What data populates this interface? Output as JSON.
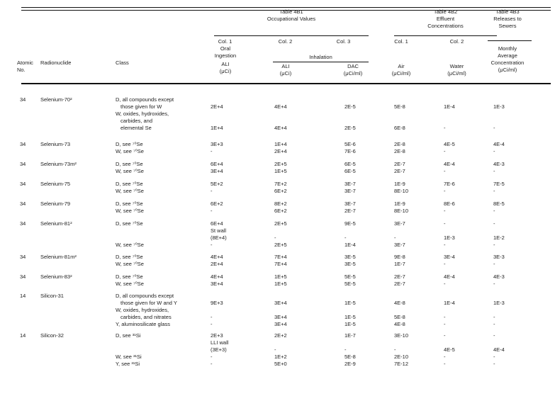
{
  "table_headers": {
    "atomic_no_line1": "Atomic",
    "atomic_no_line2": "No.",
    "radionuclide": "Radionuclide",
    "class_label": "Class",
    "t4b1": {
      "title1": "Table 4B1",
      "title2": "Occupational Values",
      "col1": "Col. 1",
      "col2": "Col. 2",
      "col3": "Col. 3",
      "oral1": "Oral",
      "oral2": "Ingestion",
      "oral3": "ALI",
      "oral4": "(μCi)",
      "inhalation": "Inhalation",
      "ali1": "ALI",
      "ali2": "(μCi)",
      "dac1": "DAC",
      "dac2": "(μCi/ml)"
    },
    "t4b2": {
      "title1": "Table 4B2",
      "title2": "Effluent",
      "title3": "Concentrations",
      "col1": "Col. 1",
      "col2": "Col. 2",
      "air1": "Air",
      "air2": "(μCi/ml)",
      "water1": "Water",
      "water2": "(μCi/ml)"
    },
    "t4b3": {
      "title1": "Table 4B3",
      "title2": "Releases to",
      "title3": "Sewers",
      "m1": "Monthly",
      "m2": "Average",
      "m3": "Concentration",
      "m4": "(μCi/ml)"
    }
  },
  "rows": [
    {
      "atomic": "34",
      "nuclide": "Selenium-70²",
      "lines": [
        {
          "class": "D, all compounds except",
          "indent": 0
        },
        {
          "class": "those given for W",
          "indent": 1,
          "oral": "2E+4",
          "inh": "4E+4",
          "dac": "2E-5",
          "air": "5E-8",
          "water": "1E-4",
          "sewer": "1E-3"
        },
        {
          "class": "W, oxides, hydroxides,",
          "indent": 0
        },
        {
          "class": "carbides, and",
          "indent": 1
        },
        {
          "class": "elemental Se",
          "indent": 1,
          "oral": "1E+4",
          "inh": "4E+4",
          "dac": "2E-5",
          "air": "6E-8",
          "water": "-",
          "sewer": "-"
        }
      ]
    },
    {
      "atomic": "34",
      "nuclide": "Selenium-73",
      "lines": [
        {
          "class": "D, see ⁷⁰Se",
          "indent": 0,
          "oral": "3E+3",
          "inh": "1E+4",
          "dac": "5E-6",
          "air": "2E-8",
          "water": "4E-5",
          "sewer": "4E-4"
        },
        {
          "class": "W, see ⁷⁰Se",
          "indent": 0,
          "oral": "-",
          "inh": "2E+4",
          "dac": "7E-6",
          "air": "2E-8",
          "water": "-",
          "sewer": "-"
        }
      ]
    },
    {
      "atomic": "34",
      "nuclide": "Selenium-73m²",
      "lines": [
        {
          "class": "D, see ⁷⁰Se",
          "indent": 0,
          "oral": "6E+4",
          "inh": "2E+5",
          "dac": "6E-5",
          "air": "2E-7",
          "water": "4E-4",
          "sewer": "4E-3"
        },
        {
          "class": "W, see ⁷⁰Se",
          "indent": 0,
          "oral": "3E+4",
          "inh": "1E+5",
          "dac": "6E-5",
          "air": "2E-7",
          "water": "-",
          "sewer": "-"
        }
      ]
    },
    {
      "atomic": "34",
      "nuclide": "Selenium-75",
      "lines": [
        {
          "class": "D, see ⁷⁰Se",
          "indent": 0,
          "oral": "5E+2",
          "inh": "7E+2",
          "dac": "3E-7",
          "air": "1E-9",
          "water": "7E-6",
          "sewer": "7E-5"
        },
        {
          "class": "W, see ⁷⁰Se",
          "indent": 0,
          "oral": "-",
          "inh": "6E+2",
          "dac": "3E-7",
          "air": "8E-10",
          "water": "-",
          "sewer": "-"
        }
      ]
    },
    {
      "atomic": "34",
      "nuclide": "Selenium-79",
      "lines": [
        {
          "class": "D, see ⁷⁰Se",
          "indent": 0,
          "oral": "6E+2",
          "inh": "8E+2",
          "dac": "3E-7",
          "air": "1E-9",
          "water": "8E-6",
          "sewer": "8E-5"
        },
        {
          "class": "W, see ⁷⁰Se",
          "indent": 0,
          "oral": "-",
          "inh": "6E+2",
          "dac": "2E-7",
          "air": "8E-10",
          "water": "-",
          "sewer": "-"
        }
      ]
    },
    {
      "atomic": "34",
      "nuclide": "Selenium-81²",
      "lines": [
        {
          "class": "D, see ⁷⁰Se",
          "indent": 0,
          "oral": "6E+4",
          "inh": "2E+5",
          "dac": "9E-5",
          "air": "3E-7",
          "water": "-",
          "sewer": "-"
        },
        {
          "class": "",
          "indent": 0,
          "oral": "St wall"
        },
        {
          "class": "",
          "indent": 0,
          "oral": "(8E+4)",
          "inh": "-",
          "dac": "-",
          "air": "-",
          "water": "1E-3",
          "sewer": "1E-2"
        },
        {
          "class": "W, see ⁷⁰Se",
          "indent": 0,
          "oral": "-",
          "inh": "2E+5",
          "dac": "1E-4",
          "air": "3E-7",
          "water": "-",
          "sewer": "-"
        }
      ]
    },
    {
      "atomic": "34",
      "nuclide": "Selenium-81m²",
      "lines": [
        {
          "class": "D, see ⁷⁰Se",
          "indent": 0,
          "oral": "4E+4",
          "inh": "7E+4",
          "dac": "3E-5",
          "air": "9E-8",
          "water": "3E-4",
          "sewer": "3E-3"
        },
        {
          "class": "W, see ⁷⁰Se",
          "indent": 0,
          "oral": "2E+4",
          "inh": "7E+4",
          "dac": "3E-5",
          "air": "1E-7",
          "water": "-",
          "sewer": "-"
        }
      ]
    },
    {
      "atomic": "34",
      "nuclide": "Selenium-83²",
      "lines": [
        {
          "class": "D, see ⁷⁰Se",
          "indent": 0,
          "oral": "4E+4",
          "inh": "1E+5",
          "dac": "5E-5",
          "air": "2E-7",
          "water": "4E-4",
          "sewer": "4E-3"
        },
        {
          "class": "W, see ⁷⁰Se",
          "indent": 0,
          "oral": "3E+4",
          "inh": "1E+5",
          "dac": "5E-5",
          "air": "2E-7",
          "water": "-",
          "sewer": "-"
        }
      ]
    },
    {
      "atomic": "14",
      "nuclide": "Silicon-31",
      "lines": [
        {
          "class": "D, all compounds except",
          "indent": 0
        },
        {
          "class": "those given for W and Y",
          "indent": 1,
          "oral": "9E+3",
          "inh": "3E+4",
          "dac": "1E-5",
          "air": "4E-8",
          "water": "1E-4",
          "sewer": "1E-3"
        },
        {
          "class": "W, oxides, hydroxides,",
          "indent": 0
        },
        {
          "class": "carbides, and nitrates",
          "indent": 1,
          "oral": "-",
          "inh": "3E+4",
          "dac": "1E-5",
          "air": "5E-8",
          "water": "-",
          "sewer": "-"
        },
        {
          "class": "Y, aluminosilicate glass",
          "indent": 0,
          "oral": "-",
          "inh": "3E+4",
          "dac": "1E-5",
          "air": "4E-8",
          "water": "-",
          "sewer": "-"
        }
      ]
    },
    {
      "atomic": "14",
      "nuclide": "Silicon-32",
      "lines": [
        {
          "class": "D, see ³¹Si",
          "indent": 0,
          "oral": "2E+3",
          "inh": "2E+2",
          "dac": "1E-7",
          "air": "3E-10",
          "water": "-",
          "sewer": "-"
        },
        {
          "class": "",
          "indent": 0,
          "oral": "LLI wall"
        },
        {
          "class": "",
          "indent": 0,
          "oral": "(3E+3)",
          "inh": "-",
          "dac": "-",
          "air": "-",
          "water": "4E-5",
          "sewer": "4E-4"
        },
        {
          "class": "W, see ³¹Si",
          "indent": 0,
          "oral": "-",
          "inh": "1E+2",
          "dac": "5E-8",
          "air": "2E-10",
          "water": "-",
          "sewer": "-"
        },
        {
          "class": "Y, see ³¹Si",
          "indent": 0,
          "oral": "-",
          "inh": "5E+0",
          "dac": "2E-9",
          "air": "7E-12",
          "water": "-",
          "sewer": "-"
        }
      ]
    }
  ]
}
